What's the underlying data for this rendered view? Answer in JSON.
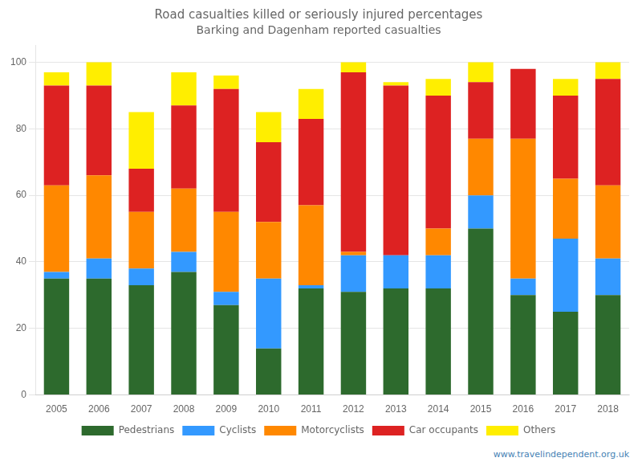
{
  "chart_data": {
    "type": "bar",
    "title": "Road casualties killed or seriously injured percentages",
    "subtitle": "Barking and Dagenham reported casualties",
    "categories": [
      "2005",
      "2006",
      "2007",
      "2008",
      "2009",
      "2010",
      "2011",
      "2012",
      "2013",
      "2014",
      "2015",
      "2016",
      "2017",
      "2018"
    ],
    "series": [
      {
        "name": "Pedestrians",
        "color": "#2d6a2d",
        "values": [
          35,
          35,
          33,
          37,
          27,
          14,
          32,
          31,
          32,
          32,
          50,
          30,
          25,
          30
        ]
      },
      {
        "name": "Cyclists",
        "color": "#3399ff",
        "values": [
          2,
          6,
          5,
          6,
          4,
          21,
          1,
          11,
          10,
          10,
          10,
          5,
          22,
          11
        ]
      },
      {
        "name": "Motorcyclists",
        "color": "#ff8800",
        "values": [
          26,
          25,
          17,
          19,
          24,
          17,
          24,
          1,
          0,
          8,
          17,
          42,
          18,
          22
        ]
      },
      {
        "name": "Car occupants",
        "color": "#dd2222",
        "values": [
          30,
          27,
          13,
          25,
          37,
          24,
          26,
          54,
          51,
          40,
          17,
          21,
          25,
          32
        ]
      },
      {
        "name": "Others",
        "color": "#ffee00",
        "values": [
          4,
          7,
          17,
          10,
          4,
          9,
          9,
          3,
          1,
          5,
          6,
          0,
          5,
          5
        ]
      }
    ],
    "stacked": true,
    "ylim": [
      0,
      105
    ],
    "yticks": [
      0,
      20,
      40,
      60,
      80,
      100
    ],
    "grid": true,
    "legend": "bottom",
    "annotations": [
      "www.travelindependent.org.uk"
    ]
  }
}
